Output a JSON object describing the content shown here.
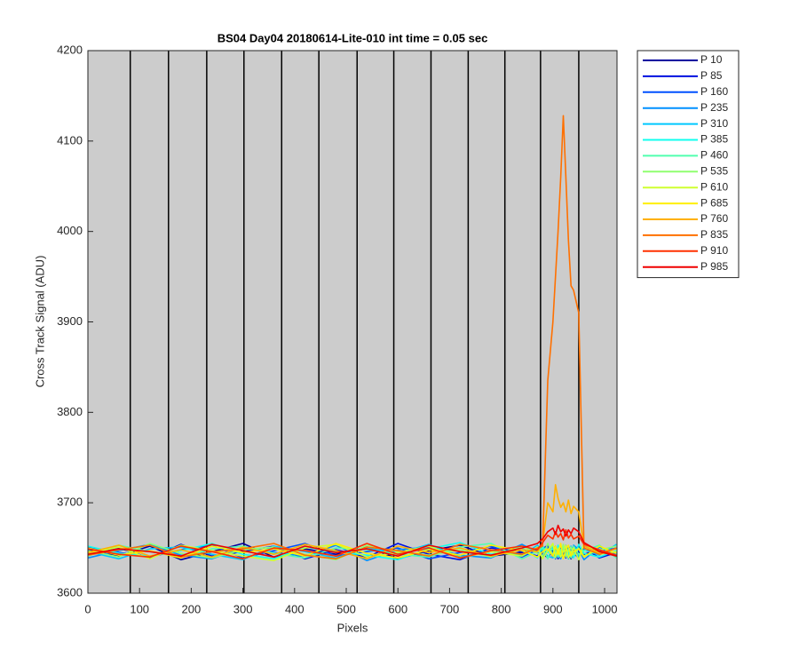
{
  "chart_data": {
    "type": "line",
    "title": "BS04 Day04 20180614-Lite-010 int time = 0.05 sec",
    "x_label": "Pixels",
    "y_label": "Cross Track Signal (ADU)",
    "xlim": [
      0,
      1024
    ],
    "ylim": [
      3600,
      4200
    ],
    "xticks": [
      0,
      100,
      200,
      300,
      400,
      500,
      600,
      700,
      800,
      900,
      1000
    ],
    "yticks": [
      3600,
      3700,
      3800,
      3900,
      4000,
      4100,
      4200
    ],
    "background": "#cccccc",
    "legend": "outside-right",
    "vlines": [
      82,
      156,
      230,
      302,
      375,
      447,
      521,
      592,
      664,
      736,
      807,
      876,
      950
    ],
    "x": [
      0,
      60,
      120,
      180,
      240,
      300,
      360,
      420,
      480,
      540,
      600,
      660,
      720,
      780,
      840,
      870,
      880,
      890,
      900,
      905,
      910,
      915,
      920,
      925,
      930,
      935,
      940,
      950,
      960,
      990,
      1023
    ],
    "series": [
      {
        "name": "P 10",
        "color": "#00009f",
        "values": [
          3648,
          3641,
          3652,
          3637,
          3646,
          3655,
          3640,
          3649,
          3643,
          3651,
          3638,
          3647,
          3653,
          3641,
          3645,
          3650,
          3644,
          3639,
          3648,
          3642,
          3651,
          3646,
          3640,
          3649,
          3644,
          3638,
          3647,
          3652,
          3643,
          3648,
          3641
        ]
      },
      {
        "name": "P 85",
        "color": "#0010e0",
        "values": [
          3643,
          3650,
          3639,
          3654,
          3641,
          3646,
          3652,
          3638,
          3648,
          3640,
          3655,
          3643,
          3637,
          3650,
          3646,
          3641,
          3649,
          3653,
          3640,
          3647,
          3638,
          3651,
          3645,
          3639,
          3652,
          3647,
          3641,
          3646,
          3650,
          3639,
          3645
        ]
      },
      {
        "name": "P 160",
        "color": "#0050ff",
        "values": [
          3651,
          3645,
          3640,
          3648,
          3653,
          3639,
          3647,
          3655,
          3641,
          3646,
          3650,
          3638,
          3645,
          3652,
          3640,
          3648,
          3643,
          3646,
          3651,
          3638,
          3645,
          3649,
          3642,
          3653,
          3640,
          3648,
          3644,
          3639,
          3652,
          3646,
          3650
        ]
      },
      {
        "name": "P 235",
        "color": "#0090ff",
        "values": [
          3639,
          3647,
          3654,
          3642,
          3638,
          3650,
          3645,
          3641,
          3653,
          3636,
          3648,
          3651,
          3642,
          3639,
          3654,
          3645,
          3640,
          3650,
          3644,
          3652,
          3641,
          3638,
          3647,
          3644,
          3650,
          3641,
          3653,
          3648,
          3637,
          3651,
          3643
        ]
      },
      {
        "name": "P 310",
        "color": "#00c8ff",
        "values": [
          3646,
          3638,
          3649,
          3651,
          3643,
          3637,
          3652,
          3646,
          3639,
          3650,
          3644,
          3654,
          3640,
          3647,
          3642,
          3653,
          3647,
          3641,
          3639,
          3650,
          3646,
          3653,
          3640,
          3646,
          3638,
          3652,
          3645,
          3641,
          3648,
          3642,
          3654
        ]
      },
      {
        "name": "P 385",
        "color": "#10ffef",
        "values": [
          3652,
          3644,
          3641,
          3647,
          3655,
          3643,
          3638,
          3651,
          3646,
          3642,
          3637,
          3649,
          3656,
          3643,
          3650,
          3639,
          3652,
          3645,
          3649,
          3641,
          3653,
          3642,
          3648,
          3651,
          3643,
          3646,
          3639,
          3654,
          3644,
          3640,
          3647
        ]
      },
      {
        "name": "P 460",
        "color": "#50ffaf",
        "values": [
          3641,
          3653,
          3646,
          3640,
          3649,
          3652,
          3644,
          3639,
          3650,
          3648,
          3643,
          3640,
          3651,
          3655,
          3638,
          3646,
          3650,
          3638,
          3653,
          3646,
          3640,
          3648,
          3651,
          3641,
          3649,
          3639,
          3652,
          3643,
          3647,
          3653,
          3639
        ]
      },
      {
        "name": "P 535",
        "color": "#90ff70",
        "values": [
          3647,
          3640,
          3655,
          3644,
          3639,
          3648,
          3651,
          3643,
          3637,
          3653,
          3646,
          3642,
          3648,
          3640,
          3652,
          3644,
          3641,
          3655,
          3642,
          3639,
          3650,
          3644,
          3654,
          3640,
          3647,
          3651,
          3642,
          3650,
          3641,
          3648,
          3652
        ]
      },
      {
        "name": "P 610",
        "color": "#cfff30",
        "values": [
          3644,
          3651,
          3638,
          3653,
          3647,
          3641,
          3636,
          3650,
          3654,
          3640,
          3645,
          3652,
          3639,
          3646,
          3641,
          3651,
          3638,
          3647,
          3655,
          3641,
          3648,
          3640,
          3646,
          3653,
          3639,
          3645,
          3650,
          3637,
          3655,
          3643,
          3646
        ]
      },
      {
        "name": "P 685",
        "color": "#ffef00",
        "values": [
          3650,
          3642,
          3647,
          3639,
          3652,
          3645,
          3649,
          3641,
          3655,
          3644,
          3639,
          3648,
          3642,
          3653,
          3647,
          3640,
          3646,
          3649,
          3641,
          3652,
          3643,
          3655,
          3638,
          3648,
          3653,
          3641,
          3646,
          3649,
          3640,
          3652,
          3644
        ]
      },
      {
        "name": "P 760",
        "color": "#ffb000",
        "values": [
          3645,
          3653,
          3641,
          3648,
          3640,
          3651,
          3643,
          3654,
          3647,
          3638,
          3652,
          3645,
          3650,
          3641,
          3648,
          3646,
          3655,
          3700,
          3690,
          3720,
          3705,
          3695,
          3700,
          3690,
          3703,
          3688,
          3696,
          3690,
          3652,
          3645,
          3649
        ]
      },
      {
        "name": "P 835",
        "color": "#ff7000",
        "values": [
          3642,
          3648,
          3653,
          3640,
          3646,
          3649,
          3655,
          3642,
          3638,
          3651,
          3647,
          3641,
          3654,
          3648,
          3643,
          3650,
          3652,
          3835,
          3900,
          3950,
          4000,
          4060,
          4128,
          4060,
          3990,
          3940,
          3935,
          3910,
          3650,
          3643,
          3650
        ]
      },
      {
        "name": "P 910",
        "color": "#ff3000",
        "values": [
          3649,
          3643,
          3640,
          3652,
          3646,
          3638,
          3650,
          3647,
          3641,
          3655,
          3643,
          3650,
          3639,
          3647,
          3652,
          3648,
          3656,
          3664,
          3660,
          3668,
          3662,
          3666,
          3659,
          3670,
          3661,
          3665,
          3660,
          3663,
          3654,
          3648,
          3642
        ]
      },
      {
        "name": "P 985",
        "color": "#ef0000",
        "values": [
          3643,
          3649,
          3646,
          3641,
          3654,
          3647,
          3640,
          3652,
          3645,
          3649,
          3641,
          3653,
          3646,
          3642,
          3650,
          3655,
          3660,
          3668,
          3672,
          3665,
          3675,
          3668,
          3671,
          3663,
          3670,
          3666,
          3672,
          3668,
          3656,
          3646,
          3641
        ]
      }
    ]
  }
}
